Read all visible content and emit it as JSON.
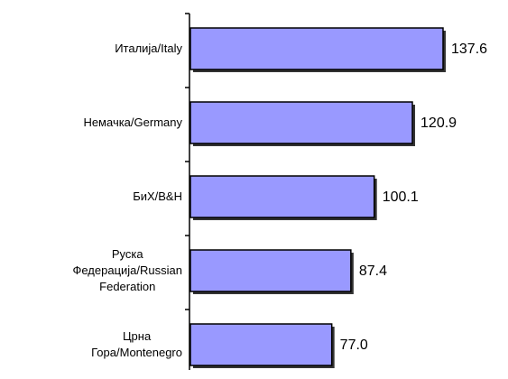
{
  "chart_data": {
    "type": "bar",
    "orientation": "horizontal",
    "categories": [
      "Италија/Italy",
      "Немачка/Germany",
      "БиХ/B&H",
      "Руска\nФедерација/Russian\nFederation",
      "Црна\nГора/Montenegro"
    ],
    "values": [
      137.6,
      120.9,
      100.1,
      87.4,
      77.0
    ],
    "value_labels": [
      "137.6",
      "120.9",
      "100.1",
      "87.4",
      "77.0"
    ],
    "color": "#9999ff"
  }
}
